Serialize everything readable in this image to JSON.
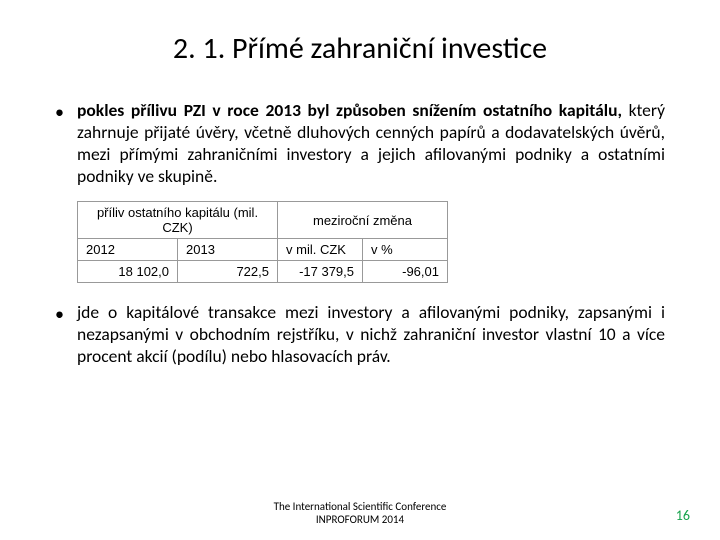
{
  "title": "2. 1. Přímé zahraniční investice",
  "bullets": [
    {
      "prefix": "pokles přílivu PZI v roce 2013 byl způsoben snížením ostatního kapitálu,",
      "rest": " který zahrnuje přijaté úvěry, včetně dluhových cenných papírů a dodavatelských úvěrů, mezi přímými zahraničními investory a jejich afilovanými podniky a ostatními podniky ve skupině."
    },
    {
      "prefix": "",
      "rest": "jde o kapitálové transakce mezi investory a afilovanými podniky, zapsanými i nezapsanými v obchodním rejstříku, v nichž zahraniční investor vlastní 10 a více procent akcií (podílu) nebo hlasovacích práv."
    }
  ],
  "table": {
    "header_inflow": "příliv ostatního kapitálu (mil. CZK)",
    "header_change": "meziroční změna",
    "sub_2012": "2012",
    "sub_2013": "2013",
    "sub_mil": "v mil. CZK",
    "sub_pct": "v %",
    "val_2012": "18 102,0",
    "val_2013": "722,5",
    "val_mil": "-17 379,5",
    "val_pct": "-96,01"
  },
  "footer": {
    "line1": "The International Scientific Conference",
    "line2": "INPROFORUM 2014"
  },
  "page_number": "16",
  "colors": {
    "accent_green": "#16a24b"
  }
}
